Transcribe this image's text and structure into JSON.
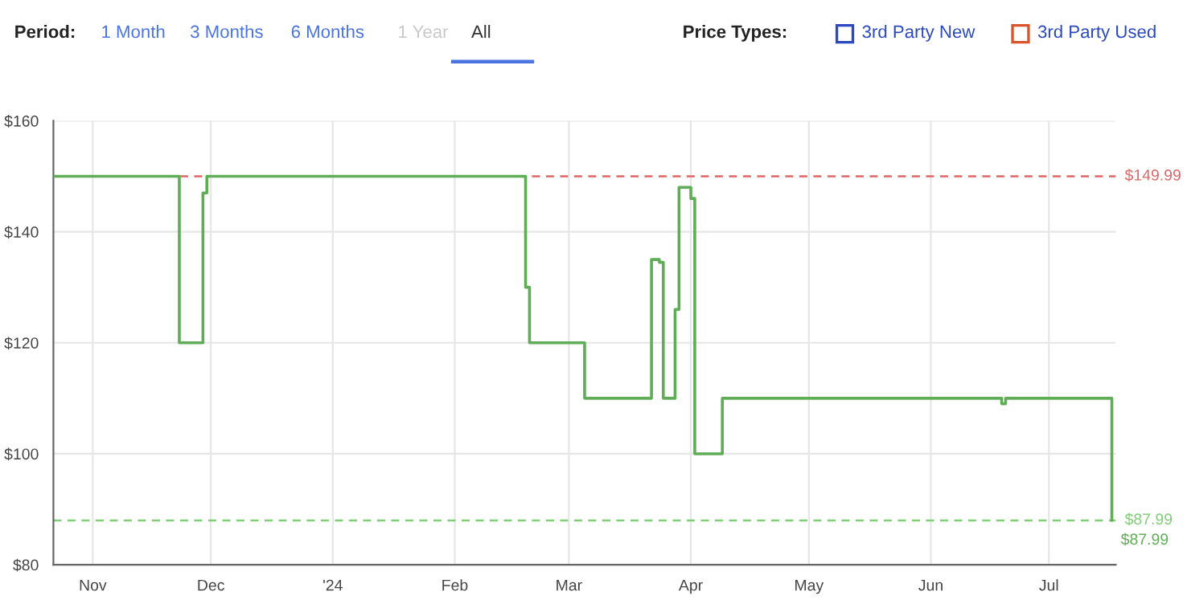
{
  "chart_data": {
    "type": "step",
    "annotations": [
      "Period:",
      "1 Month",
      "3 Months",
      "6 Months",
      "1 Year",
      "All",
      "Price Types:",
      "3rd Party New",
      "3rd Party Used",
      {
        "text": "$87.99",
        "x": "2024-07-17",
        "y": 87.99
      }
    ],
    "series": [
      {
        "color": "#5fae57",
        "x": [
          "2023-10-22",
          "2023-11-23",
          "2023-11-29",
          "2023-11-30",
          "2024-02-19",
          "2024-02-20",
          "2024-03-05",
          "2024-03-22",
          "2024-03-24",
          "2024-03-25",
          "2024-03-28",
          "2024-03-29",
          "2024-04-01",
          "2024-04-02",
          "2024-04-09",
          "2024-06-19",
          "2024-06-20",
          "2024-07-17"
        ],
        "values": [
          149.99,
          120,
          147,
          149.99,
          130,
          120,
          110,
          135,
          134.5,
          110,
          126,
          148,
          146,
          100,
          110,
          109,
          110,
          87.99
        ]
      }
    ],
    "xlim": [
      "2023-10-22",
      "2024-07-18"
    ],
    "xticks": [
      {
        "value": "2023-11-01",
        "label": "Nov"
      },
      {
        "value": "2023-12-01",
        "label": "Dec"
      },
      {
        "value": "2024-01-01",
        "label": "'24"
      },
      {
        "value": "2024-02-01",
        "label": "Feb"
      },
      {
        "value": "2024-03-01",
        "label": "Mar"
      },
      {
        "value": "2024-04-01",
        "label": "Apr"
      },
      {
        "value": "2024-05-01",
        "label": "May"
      },
      {
        "value": "2024-06-01",
        "label": "Jun"
      },
      {
        "value": "2024-07-01",
        "label": "Jul"
      }
    ],
    "ylim": [
      80,
      160
    ],
    "yticks": [
      {
        "value": 80,
        "label": "$80"
      },
      {
        "value": 100,
        "label": "$100"
      },
      {
        "value": 120,
        "label": "$120"
      },
      {
        "value": 140,
        "label": "$140"
      },
      {
        "value": 160,
        "label": "$160"
      }
    ],
    "ref_lines": [
      {
        "axis": "y",
        "value": 149.99,
        "label": "$149.99",
        "color": "#e06666",
        "line_style": "dashed"
      },
      {
        "axis": "y",
        "value": 87.99,
        "label": "$87.99",
        "color": "#7fcf77",
        "line_style": "dashed"
      }
    ],
    "grid": true
  }
}
